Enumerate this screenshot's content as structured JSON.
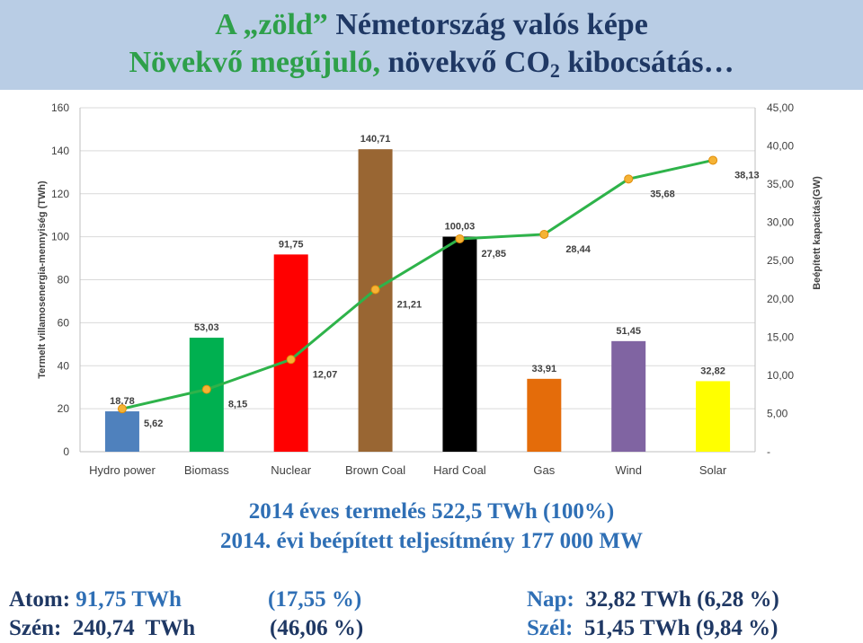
{
  "title": {
    "line1_green": "A „zöld”",
    "line1_rest": " Németország valós képe",
    "line2_green": "Növekvő megújuló,",
    "line2_rest_a": " növekvő CO",
    "line2_sub": "2",
    "line2_rest_b": " kibocsátás…"
  },
  "chart_data": {
    "type": "bar",
    "categories": [
      "Hydro power",
      "Biomass",
      "Nuclear",
      "Brown Coal",
      "Hard Coal",
      "Gas",
      "Wind",
      "Solar"
    ],
    "series": [
      {
        "name": "Termelt villamosenergia-mennyiség (TWh)",
        "axis": "left",
        "type": "bar",
        "values": [
          18.78,
          53.03,
          91.75,
          140.71,
          100.03,
          33.91,
          51.45,
          32.82
        ],
        "labels": [
          "18,78",
          "53,03",
          "91,75",
          "140,71",
          "100,03",
          "33,91",
          "51,45",
          "32,82"
        ],
        "colors": [
          "#4f81bd",
          "#00b050",
          "#ff0000",
          "#996633",
          "#000000",
          "#e46c0a",
          "#8064a2",
          "#ffff00"
        ]
      },
      {
        "name": "Beépített kapacitás (GW)",
        "axis": "right",
        "type": "line",
        "values": [
          5.62,
          8.15,
          12.07,
          21.21,
          27.85,
          28.44,
          35.68,
          38.13
        ],
        "labels": [
          "5,62",
          "8,15",
          "12,07",
          "21,21",
          "27,85",
          "28,44",
          "35,68",
          "38,13"
        ],
        "line_color": "#2eb34a",
        "marker_color": "#f5b335"
      }
    ],
    "ylabel": "Termelt villamosenergia-mennyiség (TWh)",
    "y2label": "Beépített kapacitás(GW)",
    "ylim": [
      0,
      160
    ],
    "y2lim": [
      0,
      45
    ],
    "yticks": [
      "0",
      "20",
      "40",
      "60",
      "80",
      "100",
      "120",
      "140",
      "160"
    ],
    "y2ticks": [
      "-",
      "5,00",
      "10,00",
      "15,00",
      "20,00",
      "25,00",
      "30,00",
      "35,00",
      "40,00",
      "45,00"
    ]
  },
  "stats": {
    "production": "2014 éves termelés 522,5 TWh (100%)",
    "capacity": "2014. évi beépített teljesítmény 177 000 MW"
  },
  "summary": {
    "atom_label": "Atom:",
    "atom_value": " 91,75 TWh",
    "atom_pct": "(17,55 %)",
    "szen_label": "Szén:",
    "szen_value": "  240,74  TWh",
    "szen_pct": "(46,06 %)",
    "nap_label": "Nap:",
    "nap_value": "  32,82 TWh (6,28 %)",
    "szel_label": "Szél:",
    "szel_value": "  51,45 TWh (9,84 %)"
  }
}
